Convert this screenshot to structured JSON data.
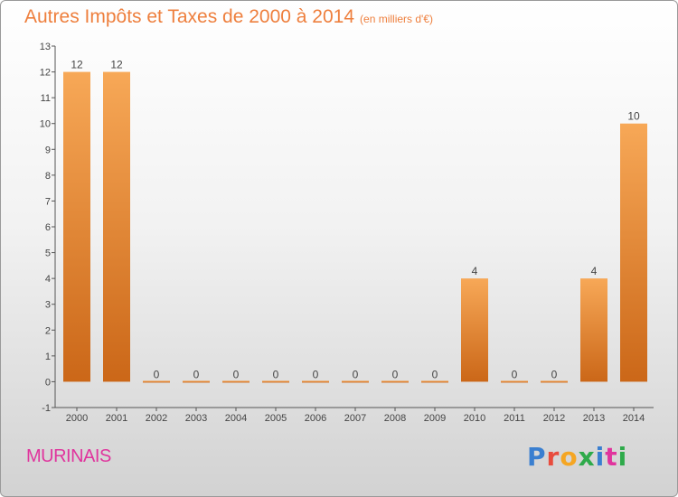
{
  "title": "Autres Impôts et Taxes de 2000 à 2014",
  "unit": "(en milliers d'€)",
  "commune": "MURINAIS",
  "brand": {
    "letters": [
      "P",
      "r",
      "o",
      "x",
      "i",
      "t",
      "i"
    ],
    "colors": [
      "#3a7fd0",
      "#e84c3d",
      "#f5a623",
      "#2eaa4a",
      "#3a7fd0",
      "#e0349d",
      "#2eaa4a"
    ]
  },
  "colors": {
    "bar_top": "#f7a857",
    "bar_bottom": "#cb6718",
    "title": "#ee7f3d",
    "commune": "#e0349d"
  },
  "chart_data": {
    "type": "bar",
    "categories": [
      "2000",
      "2001",
      "2002",
      "2003",
      "2004",
      "2005",
      "2006",
      "2007",
      "2008",
      "2009",
      "2010",
      "2011",
      "2012",
      "2013",
      "2014"
    ],
    "values": [
      12,
      12,
      0,
      0,
      0,
      0,
      0,
      0,
      0,
      0,
      4,
      0,
      0,
      4,
      10
    ],
    "data_labels": [
      "12",
      "12",
      "0",
      "0",
      "0",
      "0",
      "0",
      "0",
      "0",
      "0",
      "4",
      "0",
      "0",
      "4",
      "10"
    ],
    "yticks": [
      "-1",
      "0",
      "1",
      "2",
      "3",
      "4",
      "5",
      "6",
      "7",
      "8",
      "9",
      "10",
      "11",
      "12",
      "13"
    ],
    "ylim": [
      -1,
      13
    ],
    "grid": false
  }
}
